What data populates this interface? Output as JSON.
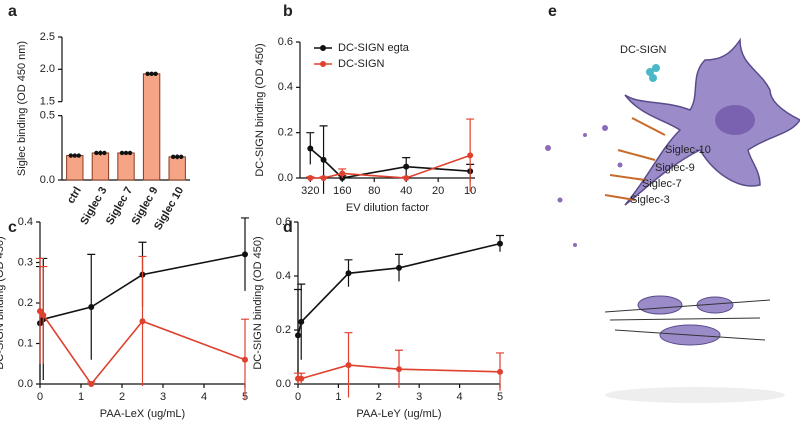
{
  "chart_data": [
    {
      "type": "bar",
      "label": "a",
      "ylabel": "Siglec binding (OD 450 nm)",
      "categories": [
        "ctrl",
        "Siglec 3",
        "Siglec 7",
        "Siglec 9",
        "Siglec 10"
      ],
      "values": [
        0.19,
        0.21,
        0.21,
        1.93,
        0.18
      ],
      "errors": [
        0.015,
        0.02,
        0.015,
        0.03,
        0.02
      ],
      "color": "#f6a486",
      "ylim": [
        0,
        2.5
      ],
      "ybreak": [
        0.5,
        1.5
      ],
      "yticks": [
        {
          "value": 0,
          "label": "0.0"
        },
        0.5,
        1.5,
        {
          "value": 2,
          "label": "2.0"
        },
        2.5
      ]
    },
    {
      "type": "line",
      "label": "b",
      "ylabel": "DC-SIGN binding (OD 450)",
      "xlabel": "EV dilution factor",
      "x": [
        320,
        240,
        160,
        40,
        10
      ],
      "xlog": true,
      "xlim": [
        400,
        9
      ],
      "xticks": [
        320,
        160,
        80,
        40,
        20,
        10
      ],
      "ylim": [
        0,
        0.6
      ],
      "yticks": [
        {
          "value": 0,
          "label": "0.0"
        },
        0.2,
        0.4,
        0.6
      ],
      "legend": "upper left",
      "series": [
        {
          "name": "DC-SIGN egta",
          "color": "#111111",
          "values": [
            0.13,
            0.08,
            0.0,
            0.05,
            0.03
          ],
          "errors": [
            0.07,
            0.15,
            0.01,
            0.04,
            0.03
          ]
        },
        {
          "name": "DC-SIGN",
          "color": "#e0402e",
          "values": [
            0.0,
            0.0,
            0.02,
            0.0,
            0.1
          ],
          "errors": [
            0.005,
            0.005,
            0.02,
            0.005,
            0.16
          ]
        }
      ]
    },
    {
      "type": "line",
      "label": "c",
      "ylabel": "DC-SIGN binding (OD 450)",
      "xlabel": "PAA-LeX (ug/mL)",
      "x": [
        0,
        0.08,
        1.25,
        2.5,
        5
      ],
      "xlim": [
        0,
        5
      ],
      "xticks": [
        0,
        1,
        2,
        3,
        4,
        5
      ],
      "ylim": [
        0,
        0.4
      ],
      "yticks": [
        {
          "value": 0,
          "label": "0.0"
        },
        0.1,
        0.2,
        0.3,
        0.4
      ],
      "series": [
        {
          "name": "DC-SIGN egta",
          "color": "#111111",
          "values": [
            0.15,
            0.16,
            0.19,
            0.27,
            0.32
          ],
          "errors": [
            0.14,
            0.15,
            0.13,
            0.08,
            0.09
          ]
        },
        {
          "name": "DC-SIGN",
          "color": "#e0402e",
          "values": [
            0.18,
            0.17,
            0.0,
            0.155,
            0.06
          ],
          "errors": [
            0.13,
            0.12,
            0.005,
            0.16,
            0.1
          ]
        }
      ]
    },
    {
      "type": "line",
      "label": "d",
      "ylabel": "DC-SIGN binding (OD 450)",
      "xlabel": "PAA-LeY (ug/mL)",
      "x": [
        0,
        0.08,
        1.25,
        2.5,
        5
      ],
      "xlim": [
        0,
        5
      ],
      "xticks": [
        0,
        1,
        2,
        3,
        4,
        5
      ],
      "ylim": [
        0,
        0.6
      ],
      "yticks": [
        {
          "value": 0,
          "label": "0.0"
        },
        0.2,
        0.4,
        0.6
      ],
      "series": [
        {
          "name": "DC-SIGN egta",
          "color": "#111111",
          "values": [
            0.18,
            0.23,
            0.41,
            0.43,
            0.52
          ],
          "errors": [
            0.17,
            0.14,
            0.05,
            0.05,
            0.03
          ]
        },
        {
          "name": "DC-SIGN",
          "color": "#e0402e",
          "values": [
            0.02,
            0.02,
            0.07,
            0.055,
            0.045
          ],
          "errors": [
            0.02,
            0.02,
            0.12,
            0.07,
            0.07
          ]
        }
      ]
    }
  ],
  "illustration": {
    "label": "e",
    "labels": [
      "DC-SIGN",
      "Siglec-10",
      "Siglec-9",
      "Siglec-7",
      "Siglec-3"
    ]
  }
}
